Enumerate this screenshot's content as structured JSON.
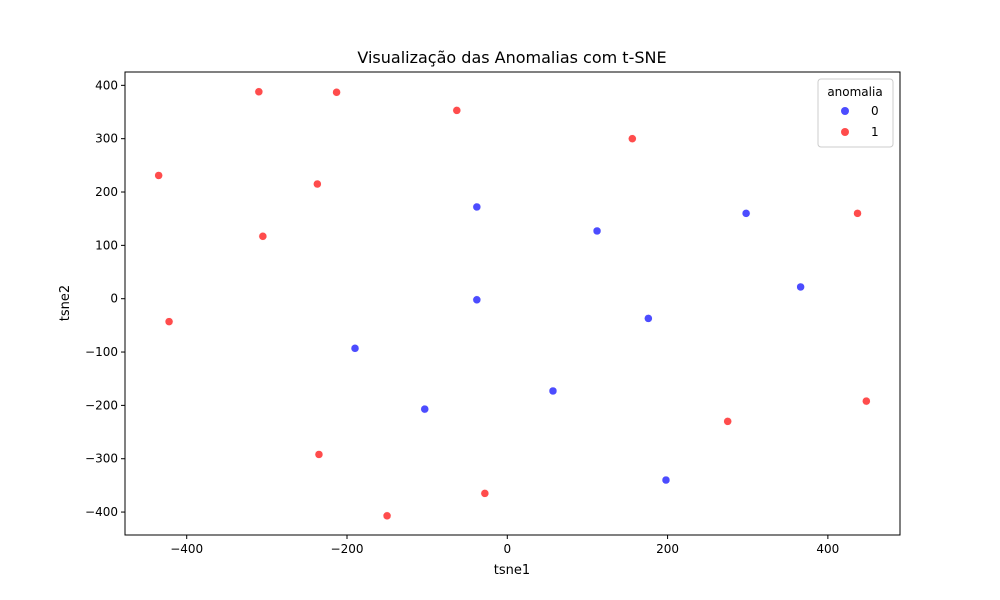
{
  "chart_data": {
    "type": "scatter",
    "title": "Visualização das Anomalias com t-SNE",
    "xlabel": "tsne1",
    "ylabel": "tsne2",
    "xlim": [
      -477,
      490
    ],
    "ylim": [
      -443,
      425
    ],
    "xticks": [
      -400,
      -200,
      0,
      200,
      400
    ],
    "yticks": [
      -400,
      -300,
      -200,
      -100,
      0,
      100,
      200,
      300,
      400
    ],
    "grid": false,
    "legend": {
      "title": "anomalia",
      "position": "top-right"
    },
    "series": [
      {
        "name": "0",
        "color": "#0000ff",
        "points": [
          {
            "x": -38,
            "y": 172
          },
          {
            "x": 112,
            "y": 127
          },
          {
            "x": 298,
            "y": 160
          },
          {
            "x": 366,
            "y": 22
          },
          {
            "x": -38,
            "y": -2
          },
          {
            "x": 176,
            "y": -37
          },
          {
            "x": -190,
            "y": -93
          },
          {
            "x": 57,
            "y": -173
          },
          {
            "x": -103,
            "y": -207
          },
          {
            "x": 198,
            "y": -340
          }
        ]
      },
      {
        "name": "1",
        "color": "#ff0000",
        "points": [
          {
            "x": -310,
            "y": 388
          },
          {
            "x": -213,
            "y": 387
          },
          {
            "x": -63,
            "y": 353
          },
          {
            "x": 156,
            "y": 300
          },
          {
            "x": -435,
            "y": 231
          },
          {
            "x": -237,
            "y": 215
          },
          {
            "x": -305,
            "y": 117
          },
          {
            "x": 437,
            "y": 160
          },
          {
            "x": -422,
            "y": -43
          },
          {
            "x": 448,
            "y": -192
          },
          {
            "x": 275,
            "y": -230
          },
          {
            "x": -235,
            "y": -292
          },
          {
            "x": -28,
            "y": -365
          },
          {
            "x": -150,
            "y": -407
          }
        ]
      }
    ]
  }
}
